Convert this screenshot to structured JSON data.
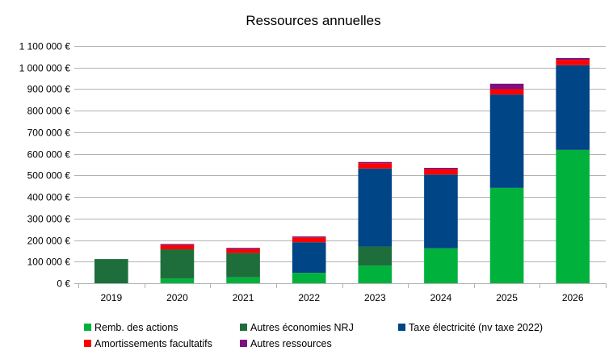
{
  "chart_data": {
    "type": "bar",
    "stacked": true,
    "title": "Ressources annuelles",
    "xlabel": "",
    "ylabel": "",
    "categories": [
      "2019",
      "2020",
      "2021",
      "2022",
      "2023",
      "2024",
      "2025",
      "2026"
    ],
    "ylim": [
      0,
      1100000
    ],
    "yticks": [
      0,
      100000,
      200000,
      300000,
      400000,
      500000,
      600000,
      700000,
      800000,
      900000,
      1000000,
      1100000
    ],
    "ytick_labels": [
      "0 €",
      "100 000 €",
      "200 000 €",
      "300 000 €",
      "400 000 €",
      "500 000 €",
      "600 000 €",
      "700 000 €",
      "800 000 €",
      "900 000 €",
      "1 000 000 €",
      "1 100 000 €"
    ],
    "grid": true,
    "legend_position": "bottom",
    "series": [
      {
        "name": "Remb. des actions",
        "color": "#00b23c",
        "values": [
          0,
          22000,
          27000,
          48000,
          82000,
          162000,
          442000,
          618000
        ]
      },
      {
        "name": "Autres économies NRJ",
        "color": "#1e6e3c",
        "values": [
          112000,
          135000,
          113000,
          0,
          88000,
          0,
          0,
          0
        ]
      },
      {
        "name": "Taxe électricité (nv taxe 2022)",
        "color": "#004586",
        "values": [
          0,
          0,
          0,
          142000,
          362000,
          342000,
          433000,
          393000
        ]
      },
      {
        "name": "Amortissements facultatifs",
        "color": "#ff0000",
        "values": [
          0,
          20000,
          18000,
          22000,
          25000,
          25000,
          25000,
          25000
        ]
      },
      {
        "name": "Autres ressources",
        "color": "#7e0f7e",
        "values": [
          0,
          5000,
          6000,
          5000,
          5000,
          6000,
          25000,
          8000
        ]
      }
    ]
  }
}
